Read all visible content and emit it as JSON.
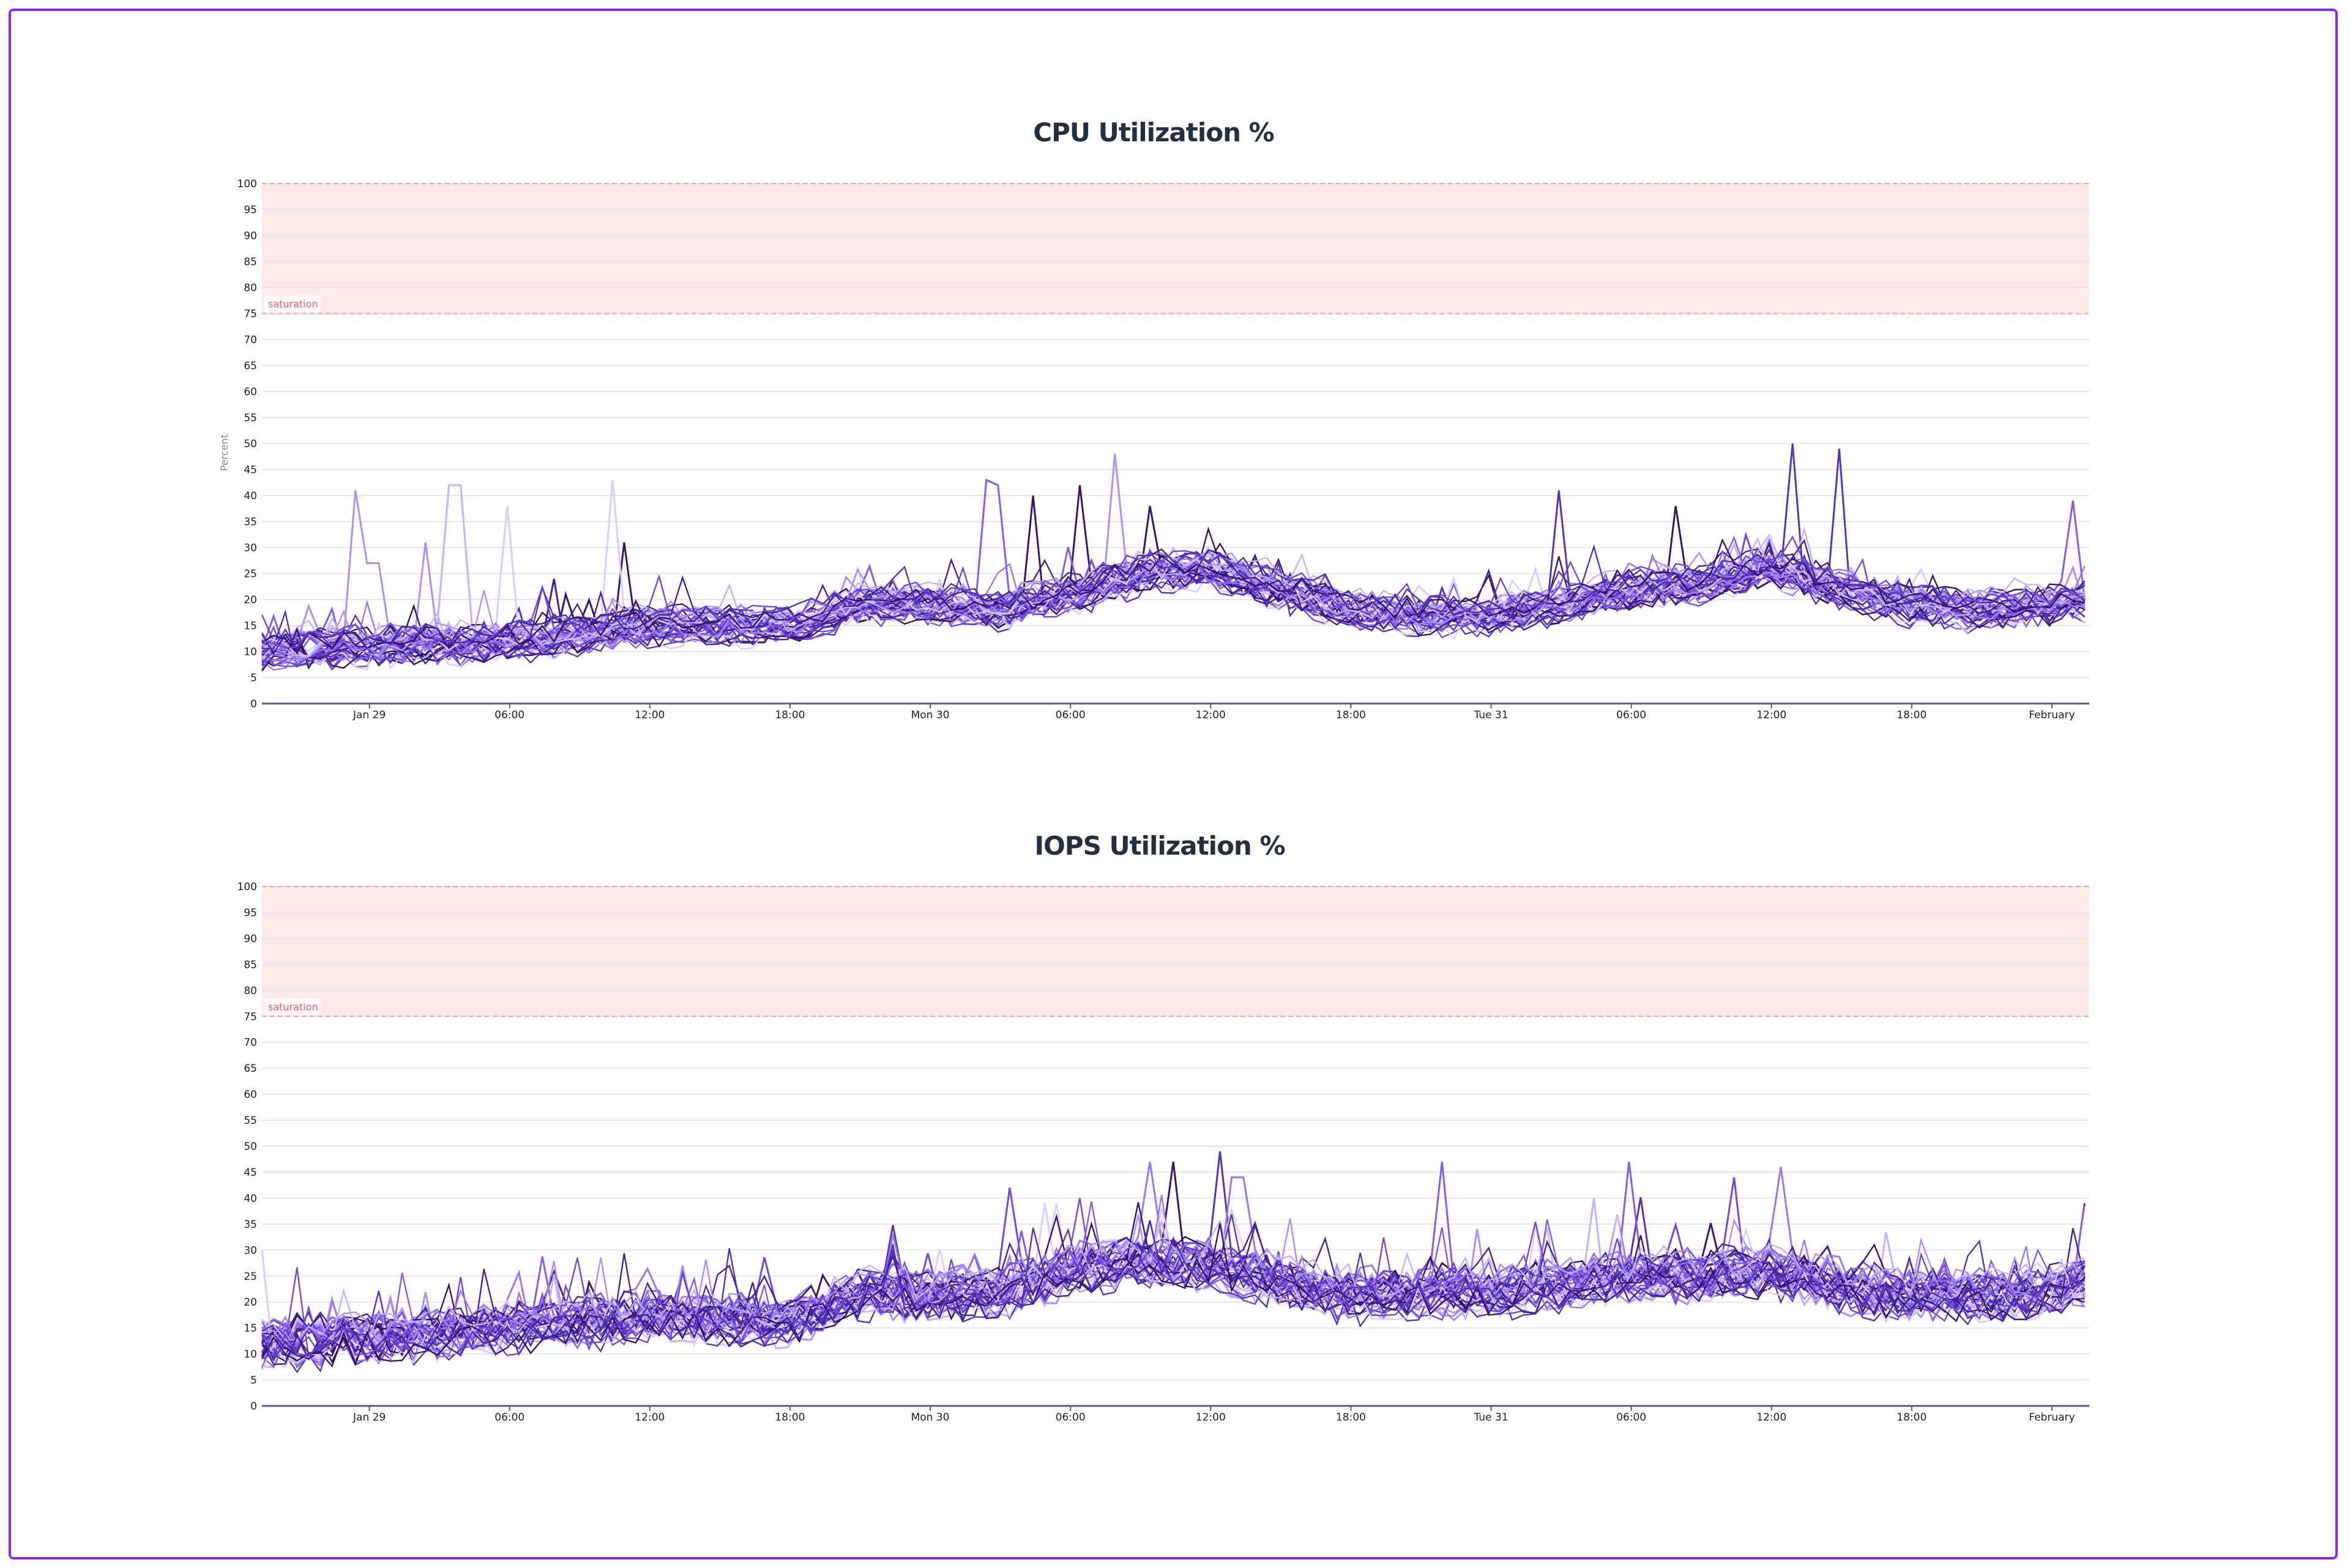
{
  "page": {
    "frame_color": "#8a2be2"
  },
  "charts": [
    {
      "id": "cpu",
      "title": "CPU Utilization %",
      "ylabel": "Percent",
      "band_label": "saturation"
    },
    {
      "id": "iops",
      "title": "IOPS Utilization %",
      "ylabel": "",
      "band_label": "saturation"
    }
  ],
  "style": {
    "band_fill": "#fde8ea",
    "band_stroke": "#f5a3ab",
    "band_label_color": "#f0606e",
    "grid_color": "#e8e6ec",
    "axis_color": "#5a5a7a",
    "tick_label_color": "#222222",
    "series_palette": [
      "#2d0a5e",
      "#3b1a8a",
      "#4c2bb0",
      "#6a3fd6",
      "#7e55e8",
      "#9670ef",
      "#a98bf4",
      "#c3aef8",
      "#d8caff"
    ]
  },
  "chart_data": [
    {
      "type": "line",
      "title": "CPU Utilization %",
      "xlabel": "",
      "ylabel": "Percent",
      "ylim": [
        0,
        100
      ],
      "yticks": [
        0,
        5,
        10,
        15,
        20,
        25,
        30,
        35,
        40,
        45,
        50,
        55,
        60,
        65,
        70,
        75,
        80,
        85,
        90,
        95,
        100
      ],
      "x_range_hours_from_jan29": [
        -4.6,
        73.6
      ],
      "xticks": [
        {
          "label": "Jan 29",
          "hour": 0
        },
        {
          "label": "06:00",
          "hour": 6
        },
        {
          "label": "12:00",
          "hour": 12
        },
        {
          "label": "18:00",
          "hour": 18
        },
        {
          "label": "Mon 30",
          "hour": 24
        },
        {
          "label": "06:00",
          "hour": 30
        },
        {
          "label": "12:00",
          "hour": 36
        },
        {
          "label": "18:00",
          "hour": 42
        },
        {
          "label": "Tue 31",
          "hour": 48
        },
        {
          "label": "06:00",
          "hour": 54
        },
        {
          "label": "12:00",
          "hour": 60
        },
        {
          "label": "18:00",
          "hour": 66
        },
        {
          "label": "February",
          "hour": 72
        }
      ],
      "grid": true,
      "legend": "none",
      "series_count": 40,
      "annotations": [
        {
          "type": "band",
          "y0": 75,
          "y1": 100,
          "label": "saturation"
        }
      ],
      "baseline_hours": [
        -4.6,
        0,
        6,
        12,
        18,
        21,
        24,
        27,
        30,
        33,
        36,
        39,
        42,
        45,
        48,
        51,
        54,
        57,
        60,
        63,
        66,
        69,
        72,
        73.6
      ],
      "baseline_median": [
        10,
        11,
        12,
        15,
        15,
        19,
        19,
        18,
        21,
        25,
        26,
        22,
        18,
        17,
        17,
        19,
        22,
        23,
        26,
        22,
        19,
        18,
        19,
        20
      ],
      "spikes": [
        {
          "hour": -0.6,
          "value": 41,
          "series": 6
        },
        {
          "hour": 0.2,
          "value": 27,
          "series": 6
        },
        {
          "hour": 2.6,
          "value": 31,
          "series": 6
        },
        {
          "hour": 3.7,
          "value": 42,
          "series": 7
        },
        {
          "hour": 5.8,
          "value": 38,
          "series": 8
        },
        {
          "hour": 7.8,
          "value": 24,
          "series": 1
        },
        {
          "hour": 8.6,
          "value": 21,
          "series": 0
        },
        {
          "hour": 10.6,
          "value": 43,
          "series": 8
        },
        {
          "hour": 11.1,
          "value": 31,
          "series": 0
        },
        {
          "hour": 26.3,
          "value": 43,
          "series": 4
        },
        {
          "hour": 26.9,
          "value": 42,
          "series": 4
        },
        {
          "hour": 28.2,
          "value": 40,
          "series": 0
        },
        {
          "hour": 32.0,
          "value": 48,
          "series": 6
        },
        {
          "hour": 30.4,
          "value": 42,
          "series": 0
        },
        {
          "hour": 33.4,
          "value": 38,
          "series": 0
        },
        {
          "hour": 51.0,
          "value": 41,
          "series": 2
        },
        {
          "hour": 56.0,
          "value": 38,
          "series": 0
        },
        {
          "hour": 61.0,
          "value": 50,
          "series": 2
        },
        {
          "hour": 63.0,
          "value": 49,
          "series": 2
        },
        {
          "hour": 73.0,
          "value": 39,
          "series": 4
        }
      ]
    },
    {
      "type": "line",
      "title": "IOPS Utilization %",
      "xlabel": "",
      "ylabel": "",
      "ylim": [
        0,
        100
      ],
      "yticks": [
        0,
        5,
        10,
        15,
        20,
        25,
        30,
        35,
        40,
        45,
        50,
        55,
        60,
        65,
        70,
        75,
        80,
        85,
        90,
        95,
        100
      ],
      "x_range_hours_from_jan29": [
        -4.6,
        73.6
      ],
      "xticks": [
        {
          "label": "Jan 29",
          "hour": 0
        },
        {
          "label": "06:00",
          "hour": 6
        },
        {
          "label": "12:00",
          "hour": 12
        },
        {
          "label": "18:00",
          "hour": 18
        },
        {
          "label": "Mon 30",
          "hour": 24
        },
        {
          "label": "06:00",
          "hour": 30
        },
        {
          "label": "12:00",
          "hour": 36
        },
        {
          "label": "18:00",
          "hour": 42
        },
        {
          "label": "Tue 31",
          "hour": 48
        },
        {
          "label": "06:00",
          "hour": 54
        },
        {
          "label": "12:00",
          "hour": 60
        },
        {
          "label": "18:00",
          "hour": 66
        },
        {
          "label": "February",
          "hour": 72
        }
      ],
      "grid": true,
      "legend": "none",
      "series_count": 40,
      "annotations": [
        {
          "type": "band",
          "y0": 75,
          "y1": 100,
          "label": "saturation"
        }
      ],
      "baseline_hours": [
        -4.6,
        0,
        6,
        12,
        18,
        21,
        24,
        27,
        30,
        33,
        36,
        39,
        42,
        45,
        48,
        51,
        54,
        57,
        60,
        63,
        66,
        69,
        72,
        73.6
      ],
      "baseline_median": [
        12,
        13,
        15,
        17,
        16,
        22,
        21,
        22,
        26,
        28,
        27,
        24,
        21,
        22,
        22,
        23,
        25,
        25,
        26,
        23,
        21,
        21,
        22,
        24
      ],
      "spikes": [
        {
          "hour": -4.5,
          "value": 30,
          "series": 8
        },
        {
          "hour": 13.5,
          "value": 27,
          "series": 6
        },
        {
          "hour": 27.2,
          "value": 42,
          "series": 3
        },
        {
          "hour": 29.0,
          "value": 39,
          "series": 8
        },
        {
          "hour": 33.4,
          "value": 47,
          "series": 5
        },
        {
          "hour": 34.3,
          "value": 47,
          "series": 0
        },
        {
          "hour": 36.4,
          "value": 49,
          "series": 2
        },
        {
          "hour": 37.1,
          "value": 44,
          "series": 5
        },
        {
          "hour": 46.0,
          "value": 47,
          "series": 4
        },
        {
          "hour": 54.0,
          "value": 47,
          "series": 4
        },
        {
          "hour": 52.3,
          "value": 40,
          "series": 7
        },
        {
          "hour": 60.2,
          "value": 46,
          "series": 5
        },
        {
          "hour": 58.4,
          "value": 44,
          "series": 3
        },
        {
          "hour": 73.5,
          "value": 39,
          "series": 1
        }
      ]
    }
  ]
}
